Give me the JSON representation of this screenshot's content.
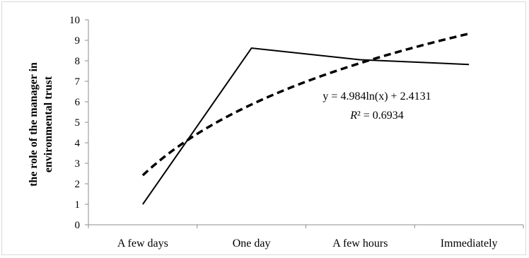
{
  "chart_data": {
    "type": "line",
    "categories": [
      "A few days",
      "One day",
      "A few hours",
      "Immediately"
    ],
    "series": [
      {
        "values": [
          1.0,
          8.62,
          8.05,
          7.82
        ],
        "style": "solid",
        "color": "#000000"
      }
    ],
    "trendline": {
      "type": "logarithmic",
      "style": "dashed",
      "color": "#000000",
      "equation": "y = 4.984ln(x) + 2.4131",
      "r2_label": "R² = 0.6934",
      "r2_prefix": "R",
      "r2_rest": "² = 0.6934",
      "a": 4.984,
      "b": 2.4131
    },
    "ylabel_line1": "the role of the manager in",
    "ylabel_line2": "environmental trust",
    "ylim": [
      0,
      10
    ],
    "yticks": [
      0,
      1,
      2,
      3,
      4,
      5,
      6,
      7,
      8,
      9,
      10
    ],
    "grid": false,
    "legend": "none"
  }
}
